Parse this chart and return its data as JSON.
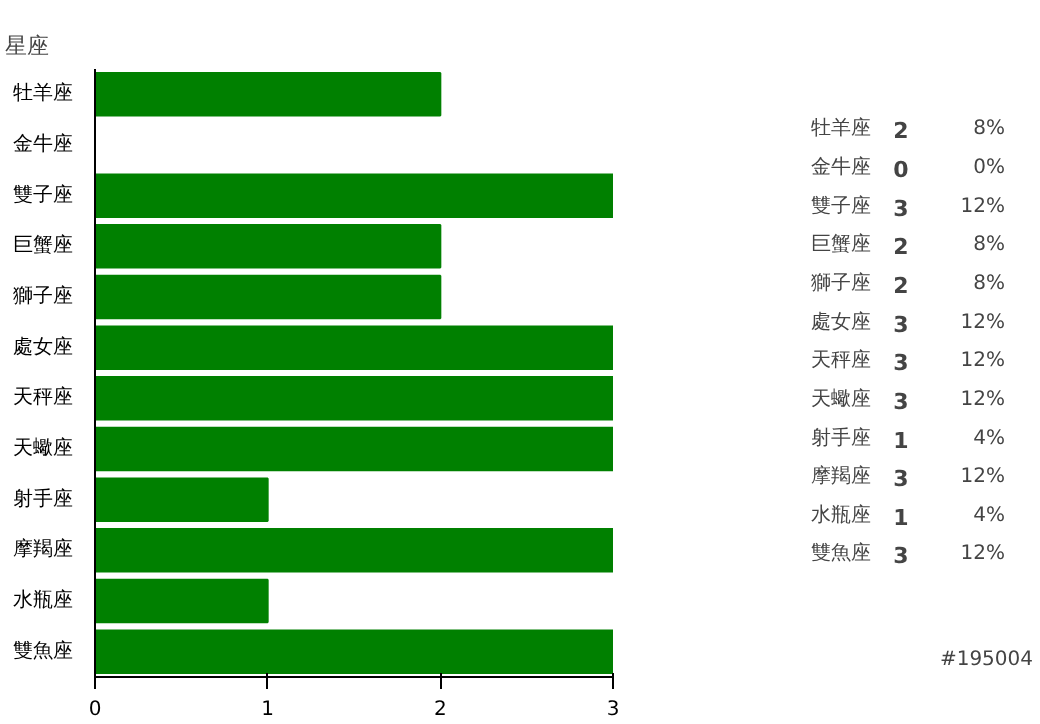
{
  "chart_data": [
    {
      "type": "bar",
      "orientation": "horizontal",
      "title": "星座",
      "categories": [
        "牡羊座",
        "金牛座",
        "雙子座",
        "巨蟹座",
        "獅子座",
        "處女座",
        "天秤座",
        "天蠍座",
        "射手座",
        "摩羯座",
        "水瓶座",
        "雙魚座"
      ],
      "values": [
        2,
        0,
        3,
        2,
        2,
        3,
        3,
        3,
        1,
        3,
        1,
        3
      ],
      "color": "#008000",
      "xlim": [
        0,
        3
      ],
      "xticks": [
        0,
        1,
        2,
        3
      ],
      "grid": false
    },
    {
      "type": "other",
      "annotations": [
        "牡羊座",
        "2",
        "8%",
        "金牛座",
        "0",
        "0%",
        "雙子座",
        "3",
        "12%",
        "巨蟹座",
        "2",
        "8%",
        "獅子座",
        "2",
        "8%",
        "處女座",
        "3",
        "12%",
        "天秤座",
        "3",
        "12%",
        "天蠍座",
        "3",
        "12%",
        "射手座",
        "1",
        "4%",
        "摩羯座",
        "3",
        "12%",
        "水瓶座",
        "1",
        "4%",
        "雙魚座",
        "3",
        "12%",
        "#195004"
      ]
    }
  ]
}
